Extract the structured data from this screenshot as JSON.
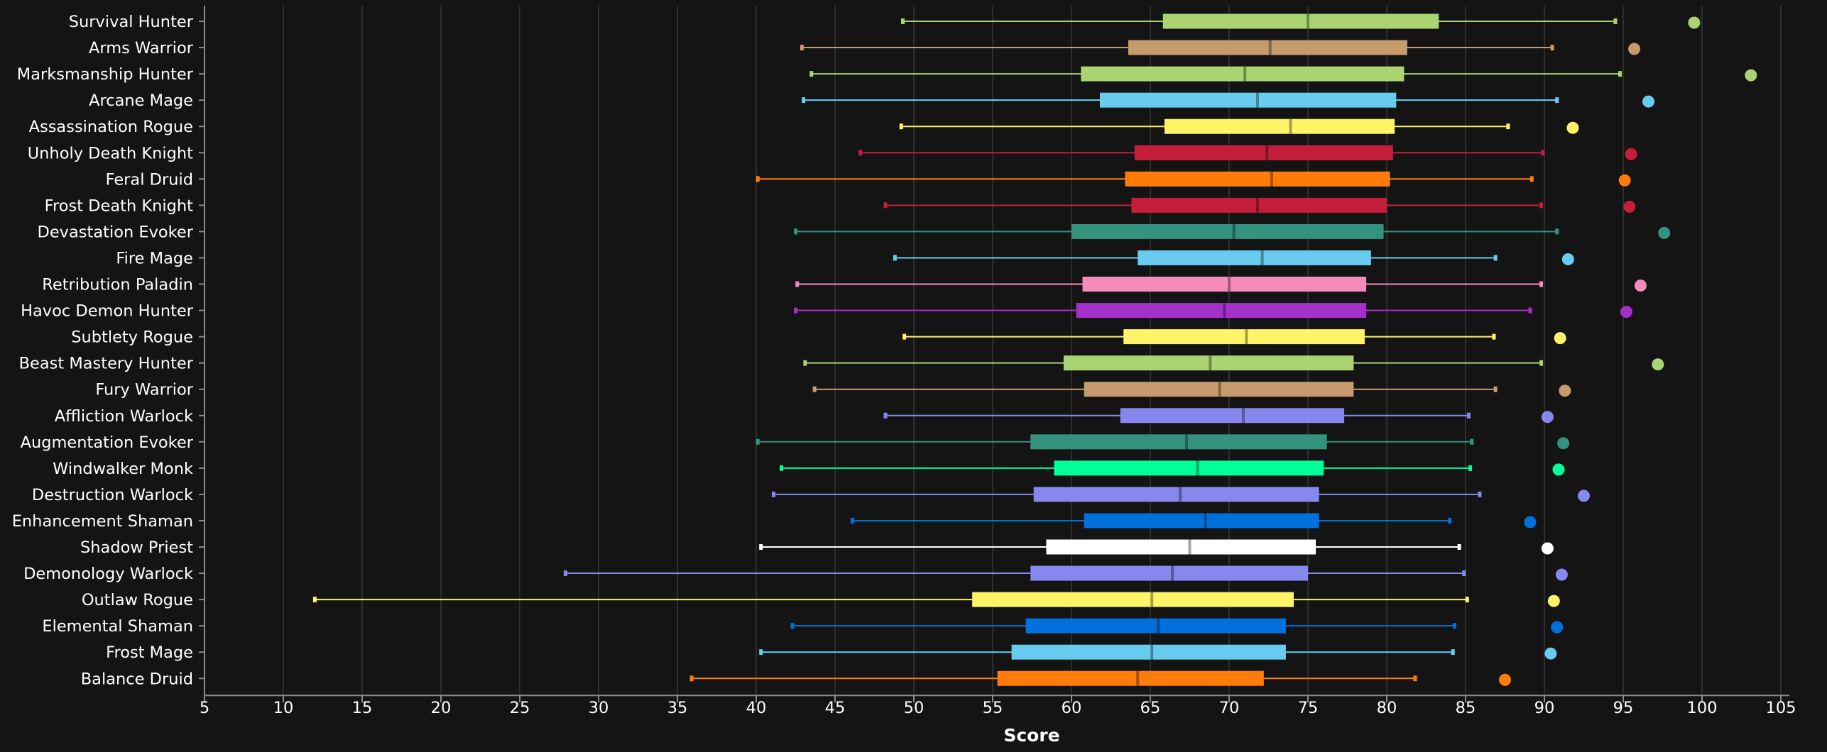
{
  "chart_data": {
    "type": "boxplot",
    "title": "",
    "xlabel": "Score",
    "ylabel": "",
    "xlim": [
      5,
      107
    ],
    "xticks": [
      5,
      10,
      15,
      20,
      25,
      30,
      35,
      40,
      45,
      50,
      55,
      60,
      65,
      70,
      75,
      80,
      85,
      90,
      95,
      100,
      105
    ],
    "grid": true,
    "orientation": "horizontal",
    "series": [
      {
        "name": "Survival Hunter",
        "color": "#aad372",
        "min": 49.3,
        "q1": 65.8,
        "median": 75.0,
        "q3": 83.3,
        "max": 94.5,
        "outlier": 99.5
      },
      {
        "name": "Arms Warrior",
        "color": "#c69b6d",
        "min": 42.9,
        "q1": 63.6,
        "median": 72.6,
        "q3": 81.3,
        "max": 90.5,
        "outlier": 95.7
      },
      {
        "name": "Marksmanship Hunter",
        "color": "#aad372",
        "min": 43.5,
        "q1": 60.6,
        "median": 71.0,
        "q3": 81.1,
        "max": 94.8,
        "outlier": 103.1
      },
      {
        "name": "Arcane Mage",
        "color": "#68ccef",
        "min": 43.0,
        "q1": 61.8,
        "median": 71.8,
        "q3": 80.6,
        "max": 90.8,
        "outlier": 96.6
      },
      {
        "name": "Assassination Rogue",
        "color": "#fff468",
        "min": 49.2,
        "q1": 65.9,
        "median": 73.9,
        "q3": 80.5,
        "max": 87.7,
        "outlier": 91.8
      },
      {
        "name": "Unholy Death Knight",
        "color": "#c41e3b",
        "min": 46.6,
        "q1": 64.0,
        "median": 72.4,
        "q3": 80.4,
        "max": 89.9,
        "outlier": 95.5
      },
      {
        "name": "Feral Druid",
        "color": "#ff7c0a",
        "min": 40.1,
        "q1": 63.4,
        "median": 72.7,
        "q3": 80.2,
        "max": 89.2,
        "outlier": 95.1
      },
      {
        "name": "Frost Death Knight",
        "color": "#c41e3b",
        "min": 48.2,
        "q1": 63.8,
        "median": 71.8,
        "q3": 80.0,
        "max": 89.8,
        "outlier": 95.4
      },
      {
        "name": "Devastation Evoker",
        "color": "#33937f",
        "min": 42.5,
        "q1": 60.0,
        "median": 70.3,
        "q3": 79.8,
        "max": 90.8,
        "outlier": 97.6
      },
      {
        "name": "Fire Mage",
        "color": "#68ccef",
        "min": 48.8,
        "q1": 64.2,
        "median": 72.1,
        "q3": 79.0,
        "max": 86.9,
        "outlier": 91.5
      },
      {
        "name": "Retribution Paladin",
        "color": "#f48cba",
        "min": 42.6,
        "q1": 60.7,
        "median": 70.0,
        "q3": 78.7,
        "max": 89.8,
        "outlier": 96.1
      },
      {
        "name": "Havoc Demon Hunter",
        "color": "#a330c9",
        "min": 42.5,
        "q1": 60.3,
        "median": 69.7,
        "q3": 78.7,
        "max": 89.1,
        "outlier": 95.2
      },
      {
        "name": "Subtlety Rogue",
        "color": "#fff468",
        "min": 49.4,
        "q1": 63.3,
        "median": 71.1,
        "q3": 78.6,
        "max": 86.8,
        "outlier": 91.0
      },
      {
        "name": "Beast Mastery Hunter",
        "color": "#aad372",
        "min": 43.1,
        "q1": 59.5,
        "median": 68.8,
        "q3": 77.9,
        "max": 89.8,
        "outlier": 97.2
      },
      {
        "name": "Fury Warrior",
        "color": "#c69b6d",
        "min": 43.7,
        "q1": 60.8,
        "median": 69.4,
        "q3": 77.9,
        "max": 86.9,
        "outlier": 91.3
      },
      {
        "name": "Affliction Warlock",
        "color": "#8788ee",
        "min": 48.2,
        "q1": 63.1,
        "median": 70.9,
        "q3": 77.3,
        "max": 85.2,
        "outlier": 90.2
      },
      {
        "name": "Augmentation Evoker",
        "color": "#33937f",
        "min": 40.1,
        "q1": 57.4,
        "median": 67.3,
        "q3": 76.2,
        "max": 85.4,
        "outlier": 91.2
      },
      {
        "name": "Windwalker Monk",
        "color": "#00ff98",
        "min": 41.6,
        "q1": 58.9,
        "median": 68.0,
        "q3": 76.0,
        "max": 85.3,
        "outlier": 90.9
      },
      {
        "name": "Destruction Warlock",
        "color": "#8788ee",
        "min": 41.1,
        "q1": 57.6,
        "median": 66.9,
        "q3": 75.7,
        "max": 85.9,
        "outlier": 92.5
      },
      {
        "name": "Enhancement Shaman",
        "color": "#0070dd",
        "min": 46.1,
        "q1": 60.8,
        "median": 68.5,
        "q3": 75.7,
        "max": 84.0,
        "outlier": 89.1
      },
      {
        "name": "Shadow Priest",
        "color": "#ffffff",
        "min": 40.3,
        "q1": 58.4,
        "median": 67.5,
        "q3": 75.5,
        "max": 84.6,
        "outlier": 90.2
      },
      {
        "name": "Demonology Warlock",
        "color": "#8788ee",
        "min": 27.9,
        "q1": 57.4,
        "median": 66.4,
        "q3": 75.0,
        "max": 84.9,
        "outlier": 91.1
      },
      {
        "name": "Outlaw Rogue",
        "color": "#fff468",
        "min": 12.0,
        "q1": 53.7,
        "median": 65.1,
        "q3": 74.1,
        "max": 85.1,
        "outlier": 90.6
      },
      {
        "name": "Elemental Shaman",
        "color": "#0070dd",
        "min": 42.3,
        "q1": 57.1,
        "median": 65.5,
        "q3": 73.6,
        "max": 84.3,
        "outlier": 90.8
      },
      {
        "name": "Frost Mage",
        "color": "#68ccef",
        "min": 40.3,
        "q1": 56.2,
        "median": 65.1,
        "q3": 73.6,
        "max": 84.2,
        "outlier": 90.4
      },
      {
        "name": "Balance Druid",
        "color": "#ff7c0a",
        "min": 35.9,
        "q1": 55.3,
        "median": 64.2,
        "q3": 72.2,
        "max": 81.8,
        "outlier": 87.5
      }
    ]
  }
}
